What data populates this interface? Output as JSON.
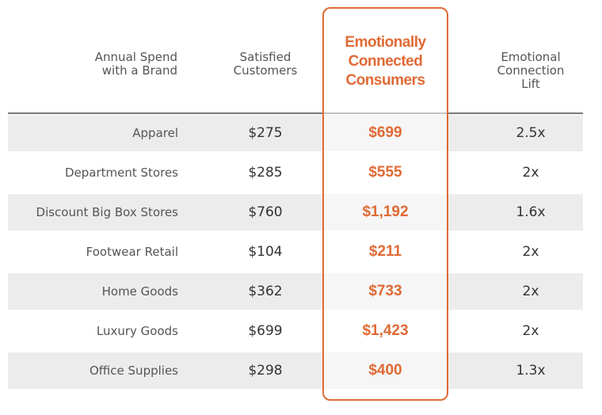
{
  "chart_data": {
    "type": "table",
    "columns": [
      "Annual Spend\nwith a Brand",
      "Satisfied\nCustomers",
      "Emotionally\nConnected\nConsumers",
      "Emotional\nConnection\nLift"
    ],
    "highlight_color": "#e06a35",
    "rows": [
      {
        "category": "Apparel",
        "satisfied": "$275",
        "emotional": "$699",
        "lift": "2.5x"
      },
      {
        "category": "Department Stores",
        "satisfied": "$285",
        "emotional": "$555",
        "lift": "2x"
      },
      {
        "category": "Discount Big Box Stores",
        "satisfied": "$760",
        "emotional": "$1,192",
        "lift": "1.6x"
      },
      {
        "category": "Footwear Retail",
        "satisfied": "$104",
        "emotional": "$211",
        "lift": "2x"
      },
      {
        "category": "Home Goods",
        "satisfied": "$362",
        "emotional": "$733",
        "lift": "2x"
      },
      {
        "category": "Luxury Goods",
        "satisfied": "$699",
        "emotional": "$1,423",
        "lift": "2x"
      },
      {
        "category": "Office Supplies",
        "satisfied": "$298",
        "emotional": "$400",
        "lift": "1.3x"
      }
    ]
  }
}
